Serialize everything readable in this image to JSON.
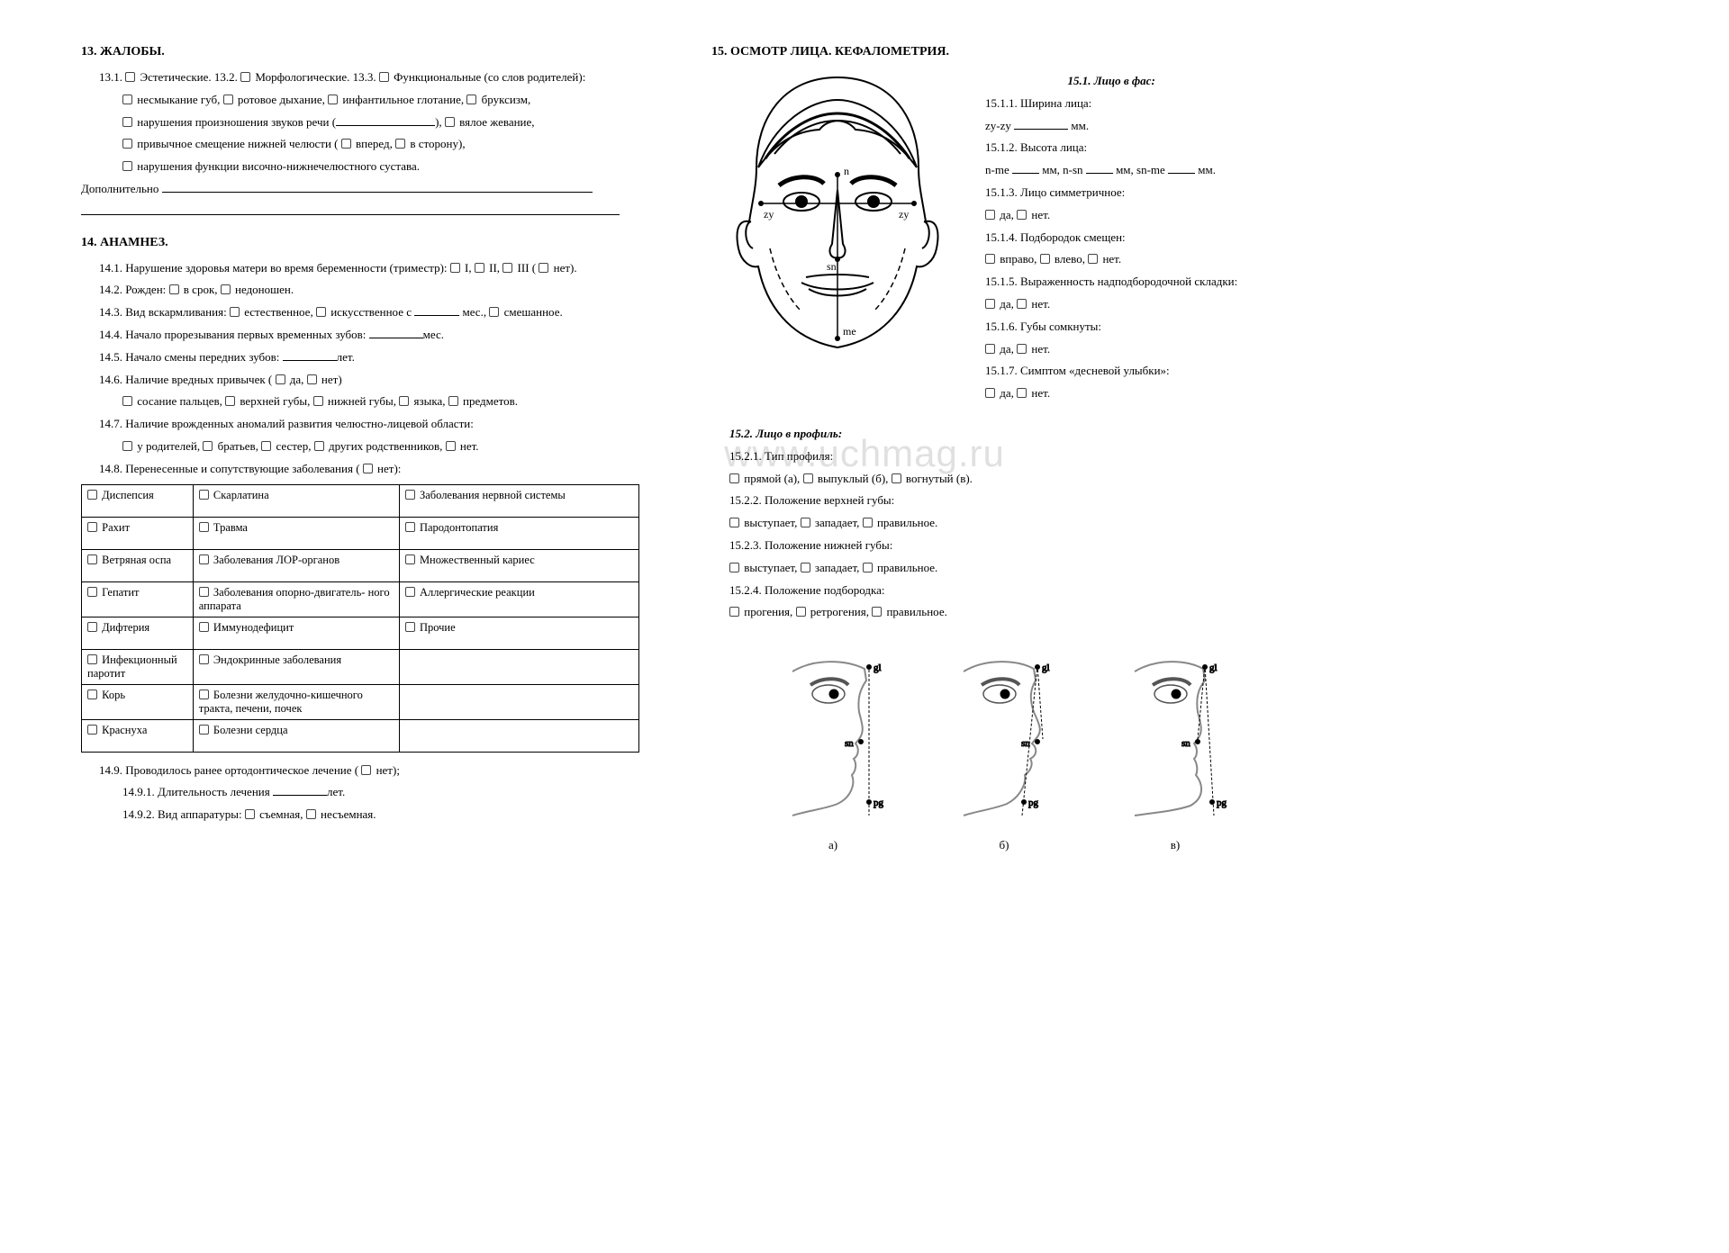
{
  "s13": {
    "title": "13. ЖАЛОБЫ.",
    "l1a": "13.1.",
    "l1b": "Эстетические. 13.2.",
    "l1c": "Морфологические. 13.3.",
    "l1d": "Функциональные (со слов родителей):",
    "f1a": "несмыкание губ,",
    "f1b": "ротовое дыхание,",
    "f1c": "инфантильное глотание,",
    "f1d": "бруксизм,",
    "f2a": "нарушения произношения звуков речи (",
    "f2b": "),",
    "f2c": "вялое жевание,",
    "f3a": "привычное смещение нижней челюсти (",
    "f3b": "вперед,",
    "f3c": "в сторону),",
    "f4": "нарушения функции височно-нижнечелюстного сустава.",
    "add": "Дополнительно"
  },
  "s14": {
    "title": "14. АНАМНЕЗ.",
    "l1": "14.1. Нарушение здоровья матери во время беременности (триместр):",
    "l1i": "I,",
    "l1ii": "II,",
    "l1iii": "III (",
    "l1n": "нет).",
    "l2": "14.2. Рожден:",
    "l2a": "в срок,",
    "l2b": "недоношен.",
    "l3": "14.3. Вид вскармливания:",
    "l3a": "естественное,",
    "l3b": "искусственное с",
    "l3m": "мес.,",
    "l3c": "смешанное.",
    "l4": "14.4. Начало прорезывания первых временных зубов:",
    "l4m": "мес.",
    "l5": "14.5. Начало смены передних зубов:",
    "l5m": "лет.",
    "l6": "14.6. Наличие вредных привычек (",
    "l6a": "да,",
    "l6b": "нет)",
    "l6s1": "сосание пальцев,",
    "l6s2": "верхней губы,",
    "l6s3": "нижней губы,",
    "l6s4": "языка,",
    "l6s5": "предметов.",
    "l7": "14.7. Наличие врожденных аномалий развития челюстно-лицевой области:",
    "l7a": "у родителей,",
    "l7b": "братьев,",
    "l7c": "сестер,",
    "l7d": "других родственников,",
    "l7e": "нет.",
    "l8": "14.8. Перенесенные и сопутствующие заболевания (",
    "l8n": "нет):",
    "t": [
      [
        "Диспепсия",
        "Скарлатина",
        "Заболевания нервной системы"
      ],
      [
        "Рахит",
        "Травма",
        "Пародонтопатия"
      ],
      [
        "Ветряная оспа",
        "Заболевания ЛОР-органов",
        "Множественный кариес"
      ],
      [
        "Гепатит",
        "Заболевания опорно-двигатель-\nного аппарата",
        "Аллергические реакции"
      ],
      [
        "Дифтерия",
        "Иммунодефицит",
        "Прочие"
      ],
      [
        "Инфекционный паротит",
        "Эндокринные заболевания",
        ""
      ],
      [
        "Корь",
        "Болезни желудочно-кишечного тракта, печени, почек",
        ""
      ],
      [
        "Краснуха",
        "Болезни сердца",
        ""
      ]
    ],
    "l9": "14.9. Проводилось ранее ортодонтическое лечение (",
    "l9n": "нет);",
    "l91": "14.9.1. Длительность лечения",
    "l91m": "лет.",
    "l92": "14.9.2. Вид аппаратуры:",
    "l92a": "съемная,",
    "l92b": "несъемная."
  },
  "s15": {
    "title": "15. ОСМОТР ЛИЦА. КЕФАЛОМЕТРИЯ.",
    "s1": "15.1.  Лицо в фас:",
    "p111": "15.1.1. Ширина лица:",
    "p111v": "zy-zy",
    "p111u": "мм.",
    "p112": "15.1.2. Высота лица:",
    "p112a": "n-me",
    "p112b": "мм, n-sn",
    "p112c": "мм, sn-me",
    "p112d": "мм.",
    "p113": "15.1.3. Лицо симметричное:",
    "yes": "да,",
    "no": "нет.",
    "p114": "15.1.4. Подбородок смещен:",
    "p114a": "вправо,",
    "p114b": "влево,",
    "p114c": "нет.",
    "p115": "15.1.5. Выраженность надподбородочной складки:",
    "p116": "15.1.6. Губы сомкнуты:",
    "p117": "15.1.7. Симптом «десневой улыбки»:",
    "s2": "15.2. Лицо в профиль:",
    "p121": "15.2.1. Тип профиля:",
    "p121a": "прямой (а),",
    "p121b": "выпуклый (б),",
    "p121c": "вогнутый (в).",
    "p122": "15.2.2. Положение верхней губы:",
    "p122a": "выступает,",
    "p122b": "западает,",
    "p122c": "правильное.",
    "p123": "15.2.3. Положение нижней губы:",
    "p124": "15.2.4. Положение подбородка:",
    "p124a": "прогения,",
    "p124b": "ретрогения,",
    "p124c": "правильное.",
    "pa": "а)",
    "pb": "б)",
    "pc": "в)",
    "face_labels": {
      "n": "n",
      "zy": "zy",
      "sn": "sn",
      "me": "me"
    },
    "prof_labels": {
      "gl": "gl",
      "sn": "sn",
      "pg": "pg"
    }
  },
  "watermark": "www.uchmag.ru"
}
